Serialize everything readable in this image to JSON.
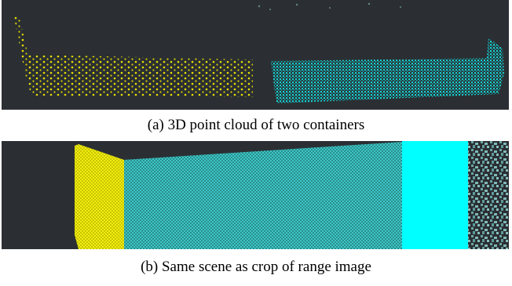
{
  "figure": {
    "captions": [
      "(a) 3D point cloud of two containers",
      "(b) Same scene as crop of range image"
    ]
  }
}
